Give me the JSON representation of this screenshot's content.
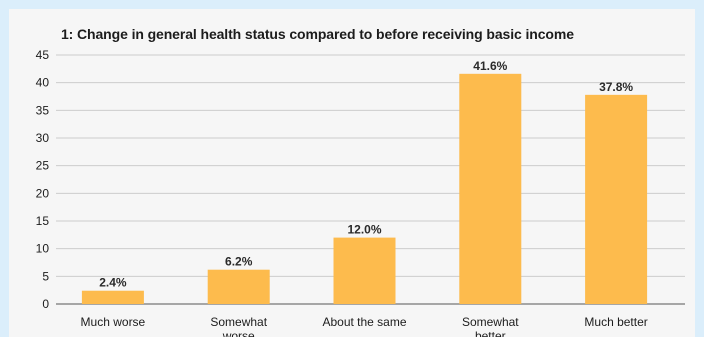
{
  "chart_data": {
    "type": "bar",
    "title": "1: Change in general health status compared to before receiving basic income",
    "categories": [
      "Much worse",
      "Somewhat worse",
      "About the same",
      "Somewhat better",
      "Much better"
    ],
    "values": [
      2.4,
      6.2,
      12.0,
      41.6,
      37.8
    ],
    "value_labels": [
      "2.4%",
      "6.2%",
      "12.0%",
      "41.6%",
      "37.8%"
    ],
    "yticks": [
      0,
      5,
      10,
      15,
      20,
      25,
      30,
      35,
      40,
      45
    ],
    "xlabel": "",
    "ylabel": "",
    "ylim": [
      0,
      45
    ],
    "grid": true,
    "bar_color": "#fdbb4d",
    "grid_color": "#cccccc"
  }
}
